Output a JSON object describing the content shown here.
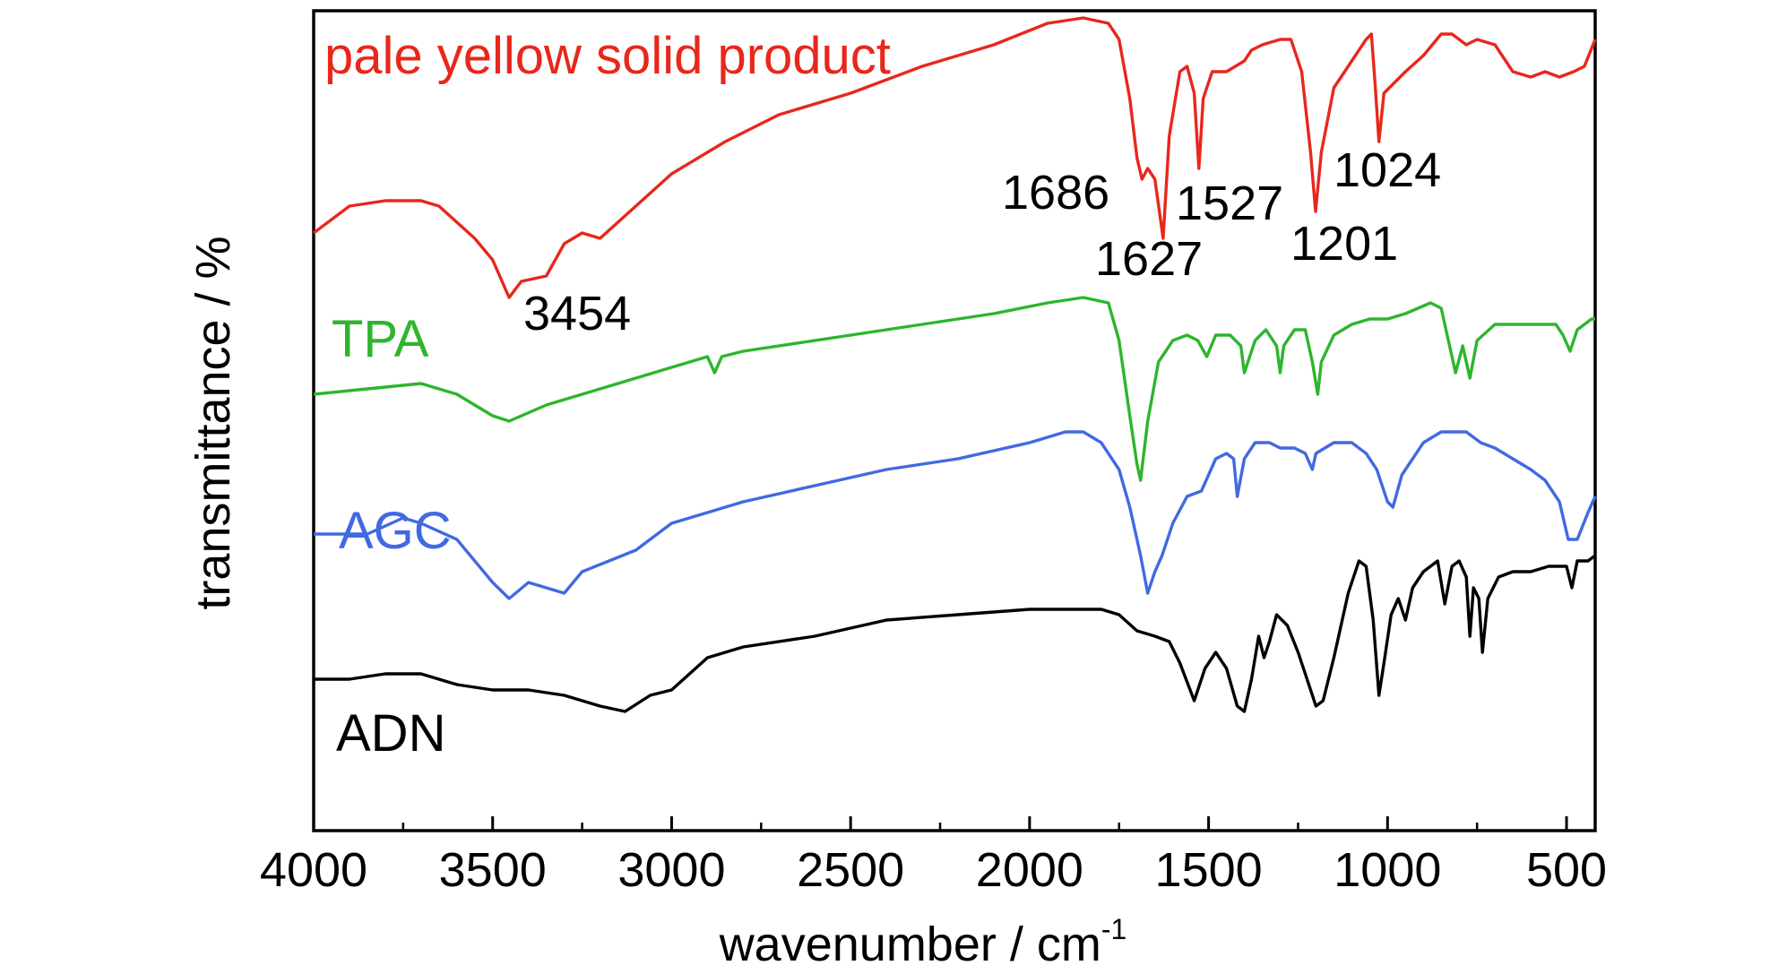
{
  "chart_data": {
    "type": "line",
    "xlabel": "wavenumber / cm",
    "xlabel_superscript": "-1",
    "ylabel": "transmittance / %",
    "xlim": [
      4000,
      420
    ],
    "x_reversed": true,
    "xticks": [
      4000,
      3500,
      3000,
      2500,
      2000,
      1500,
      1000,
      500
    ],
    "xtick_labels": [
      "4000",
      "3500",
      "3000",
      "2500",
      "2000",
      "1500",
      "1000",
      "500"
    ],
    "y_tick_labels_shown": false,
    "grid": false,
    "legend": "none (series labelled directly on the plot)",
    "series": [
      {
        "name": "pale yellow solid product",
        "color": "#e8271b",
        "points": [
          [
            4000,
            0.3
          ],
          [
            3900,
            0.35
          ],
          [
            3800,
            0.36
          ],
          [
            3700,
            0.36
          ],
          [
            3650,
            0.35
          ],
          [
            3550,
            0.29
          ],
          [
            3500,
            0.25
          ],
          [
            3454,
            0.18
          ],
          [
            3420,
            0.21
          ],
          [
            3350,
            0.22
          ],
          [
            3300,
            0.28
          ],
          [
            3250,
            0.3
          ],
          [
            3200,
            0.29
          ],
          [
            3100,
            0.35
          ],
          [
            3000,
            0.41
          ],
          [
            2850,
            0.47
          ],
          [
            2700,
            0.52
          ],
          [
            2500,
            0.56
          ],
          [
            2300,
            0.61
          ],
          [
            2100,
            0.65
          ],
          [
            1950,
            0.69
          ],
          [
            1850,
            0.7
          ],
          [
            1780,
            0.69
          ],
          [
            1750,
            0.66
          ],
          [
            1720,
            0.55
          ],
          [
            1700,
            0.44
          ],
          [
            1686,
            0.4
          ],
          [
            1670,
            0.42
          ],
          [
            1650,
            0.4
          ],
          [
            1627,
            0.29
          ],
          [
            1610,
            0.48
          ],
          [
            1580,
            0.6
          ],
          [
            1560,
            0.61
          ],
          [
            1540,
            0.56
          ],
          [
            1527,
            0.42
          ],
          [
            1515,
            0.55
          ],
          [
            1490,
            0.6
          ],
          [
            1450,
            0.6
          ],
          [
            1400,
            0.62
          ],
          [
            1380,
            0.64
          ],
          [
            1350,
            0.65
          ],
          [
            1300,
            0.66
          ],
          [
            1270,
            0.66
          ],
          [
            1240,
            0.6
          ],
          [
            1215,
            0.45
          ],
          [
            1201,
            0.34
          ],
          [
            1185,
            0.45
          ],
          [
            1150,
            0.57
          ],
          [
            1100,
            0.62
          ],
          [
            1060,
            0.66
          ],
          [
            1045,
            0.67
          ],
          [
            1035,
            0.58
          ],
          [
            1024,
            0.47
          ],
          [
            1010,
            0.56
          ],
          [
            980,
            0.58
          ],
          [
            950,
            0.6
          ],
          [
            900,
            0.63
          ],
          [
            850,
            0.67
          ],
          [
            820,
            0.67
          ],
          [
            780,
            0.65
          ],
          [
            750,
            0.66
          ],
          [
            700,
            0.65
          ],
          [
            650,
            0.6
          ],
          [
            600,
            0.59
          ],
          [
            560,
            0.6
          ],
          [
            520,
            0.59
          ],
          [
            480,
            0.6
          ],
          [
            450,
            0.61
          ],
          [
            420,
            0.66
          ]
        ]
      },
      {
        "name": "TPA",
        "color": "#2db52d",
        "points": [
          [
            4000,
            0.0
          ],
          [
            3850,
            0.01
          ],
          [
            3700,
            0.02
          ],
          [
            3600,
            0.0
          ],
          [
            3500,
            -0.04
          ],
          [
            3454,
            -0.05
          ],
          [
            3350,
            -0.02
          ],
          [
            3200,
            0.01
          ],
          [
            3000,
            0.05
          ],
          [
            2900,
            0.07
          ],
          [
            2880,
            0.04
          ],
          [
            2860,
            0.07
          ],
          [
            2800,
            0.08
          ],
          [
            2500,
            0.11
          ],
          [
            2300,
            0.13
          ],
          [
            2100,
            0.15
          ],
          [
            1950,
            0.17
          ],
          [
            1850,
            0.18
          ],
          [
            1780,
            0.17
          ],
          [
            1750,
            0.1
          ],
          [
            1720,
            -0.04
          ],
          [
            1700,
            -0.13
          ],
          [
            1690,
            -0.16
          ],
          [
            1670,
            -0.05
          ],
          [
            1640,
            0.06
          ],
          [
            1600,
            0.1
          ],
          [
            1560,
            0.11
          ],
          [
            1530,
            0.1
          ],
          [
            1505,
            0.07
          ],
          [
            1480,
            0.11
          ],
          [
            1440,
            0.11
          ],
          [
            1410,
            0.09
          ],
          [
            1400,
            0.04
          ],
          [
            1390,
            0.06
          ],
          [
            1370,
            0.1
          ],
          [
            1340,
            0.12
          ],
          [
            1310,
            0.09
          ],
          [
            1300,
            0.04
          ],
          [
            1290,
            0.09
          ],
          [
            1260,
            0.12
          ],
          [
            1230,
            0.12
          ],
          [
            1210,
            0.06
          ],
          [
            1195,
            0.0
          ],
          [
            1185,
            0.06
          ],
          [
            1150,
            0.11
          ],
          [
            1100,
            0.13
          ],
          [
            1050,
            0.14
          ],
          [
            1000,
            0.14
          ],
          [
            950,
            0.15
          ],
          [
            880,
            0.17
          ],
          [
            850,
            0.16
          ],
          [
            830,
            0.1
          ],
          [
            810,
            0.04
          ],
          [
            790,
            0.09
          ],
          [
            770,
            0.03
          ],
          [
            750,
            0.1
          ],
          [
            700,
            0.13
          ],
          [
            600,
            0.13
          ],
          [
            530,
            0.13
          ],
          [
            510,
            0.11
          ],
          [
            490,
            0.08
          ],
          [
            470,
            0.12
          ],
          [
            430,
            0.14
          ],
          [
            420,
            0.14
          ]
        ]
      },
      {
        "name": "AGC",
        "color": "#4169e1",
        "points": [
          [
            4000,
            -0.26
          ],
          [
            3850,
            -0.26
          ],
          [
            3750,
            -0.23
          ],
          [
            3700,
            -0.24
          ],
          [
            3600,
            -0.27
          ],
          [
            3500,
            -0.35
          ],
          [
            3454,
            -0.38
          ],
          [
            3400,
            -0.35
          ],
          [
            3300,
            -0.37
          ],
          [
            3250,
            -0.33
          ],
          [
            3100,
            -0.29
          ],
          [
            3000,
            -0.24
          ],
          [
            2800,
            -0.2
          ],
          [
            2600,
            -0.17
          ],
          [
            2400,
            -0.14
          ],
          [
            2200,
            -0.12
          ],
          [
            2000,
            -0.09
          ],
          [
            1900,
            -0.07
          ],
          [
            1850,
            -0.07
          ],
          [
            1800,
            -0.09
          ],
          [
            1750,
            -0.14
          ],
          [
            1720,
            -0.21
          ],
          [
            1690,
            -0.3
          ],
          [
            1670,
            -0.37
          ],
          [
            1650,
            -0.33
          ],
          [
            1630,
            -0.3
          ],
          [
            1600,
            -0.24
          ],
          [
            1560,
            -0.19
          ],
          [
            1520,
            -0.18
          ],
          [
            1480,
            -0.12
          ],
          [
            1450,
            -0.11
          ],
          [
            1430,
            -0.12
          ],
          [
            1420,
            -0.19
          ],
          [
            1400,
            -0.12
          ],
          [
            1370,
            -0.09
          ],
          [
            1330,
            -0.09
          ],
          [
            1300,
            -0.1
          ],
          [
            1260,
            -0.1
          ],
          [
            1230,
            -0.11
          ],
          [
            1210,
            -0.14
          ],
          [
            1200,
            -0.11
          ],
          [
            1150,
            -0.09
          ],
          [
            1100,
            -0.09
          ],
          [
            1060,
            -0.11
          ],
          [
            1030,
            -0.14
          ],
          [
            1000,
            -0.2
          ],
          [
            985,
            -0.21
          ],
          [
            960,
            -0.15
          ],
          [
            900,
            -0.09
          ],
          [
            850,
            -0.07
          ],
          [
            780,
            -0.07
          ],
          [
            740,
            -0.09
          ],
          [
            700,
            -0.1
          ],
          [
            650,
            -0.12
          ],
          [
            600,
            -0.14
          ],
          [
            560,
            -0.16
          ],
          [
            520,
            -0.2
          ],
          [
            495,
            -0.27
          ],
          [
            470,
            -0.27
          ],
          [
            440,
            -0.22
          ],
          [
            420,
            -0.19
          ]
        ]
      },
      {
        "name": "ADN",
        "color": "#000000",
        "points": [
          [
            4000,
            -0.53
          ],
          [
            3900,
            -0.53
          ],
          [
            3800,
            -0.52
          ],
          [
            3700,
            -0.52
          ],
          [
            3600,
            -0.54
          ],
          [
            3500,
            -0.55
          ],
          [
            3400,
            -0.55
          ],
          [
            3300,
            -0.56
          ],
          [
            3200,
            -0.58
          ],
          [
            3130,
            -0.59
          ],
          [
            3060,
            -0.56
          ],
          [
            3000,
            -0.55
          ],
          [
            2900,
            -0.49
          ],
          [
            2800,
            -0.47
          ],
          [
            2600,
            -0.45
          ],
          [
            2400,
            -0.42
          ],
          [
            2200,
            -0.41
          ],
          [
            2000,
            -0.4
          ],
          [
            1900,
            -0.4
          ],
          [
            1800,
            -0.4
          ],
          [
            1750,
            -0.41
          ],
          [
            1700,
            -0.44
          ],
          [
            1650,
            -0.45
          ],
          [
            1610,
            -0.46
          ],
          [
            1580,
            -0.5
          ],
          [
            1540,
            -0.57
          ],
          [
            1510,
            -0.51
          ],
          [
            1480,
            -0.48
          ],
          [
            1450,
            -0.51
          ],
          [
            1420,
            -0.58
          ],
          [
            1400,
            -0.59
          ],
          [
            1380,
            -0.53
          ],
          [
            1360,
            -0.45
          ],
          [
            1345,
            -0.49
          ],
          [
            1330,
            -0.46
          ],
          [
            1310,
            -0.41
          ],
          [
            1280,
            -0.43
          ],
          [
            1250,
            -0.48
          ],
          [
            1230,
            -0.52
          ],
          [
            1200,
            -0.58
          ],
          [
            1180,
            -0.57
          ],
          [
            1150,
            -0.49
          ],
          [
            1110,
            -0.37
          ],
          [
            1080,
            -0.31
          ],
          [
            1060,
            -0.32
          ],
          [
            1040,
            -0.42
          ],
          [
            1024,
            -0.56
          ],
          [
            1010,
            -0.5
          ],
          [
            990,
            -0.41
          ],
          [
            970,
            -0.38
          ],
          [
            950,
            -0.42
          ],
          [
            930,
            -0.36
          ],
          [
            900,
            -0.33
          ],
          [
            860,
            -0.31
          ],
          [
            840,
            -0.39
          ],
          [
            820,
            -0.32
          ],
          [
            800,
            -0.31
          ],
          [
            780,
            -0.34
          ],
          [
            770,
            -0.45
          ],
          [
            760,
            -0.36
          ],
          [
            745,
            -0.38
          ],
          [
            735,
            -0.48
          ],
          [
            720,
            -0.38
          ],
          [
            690,
            -0.34
          ],
          [
            650,
            -0.33
          ],
          [
            600,
            -0.33
          ],
          [
            550,
            -0.32
          ],
          [
            520,
            -0.32
          ],
          [
            500,
            -0.32
          ],
          [
            485,
            -0.36
          ],
          [
            470,
            -0.31
          ],
          [
            440,
            -0.31
          ],
          [
            420,
            -0.3
          ]
        ]
      }
    ],
    "annotations": [
      {
        "text": "3454",
        "series": "pale yellow solid product"
      },
      {
        "text": "1686",
        "series": "pale yellow solid product"
      },
      {
        "text": "1627",
        "series": "pale yellow solid product"
      },
      {
        "text": "1527",
        "series": "pale yellow solid product"
      },
      {
        "text": "1201",
        "series": "pale yellow solid product"
      },
      {
        "text": "1024",
        "series": "pale yellow solid product"
      }
    ]
  }
}
